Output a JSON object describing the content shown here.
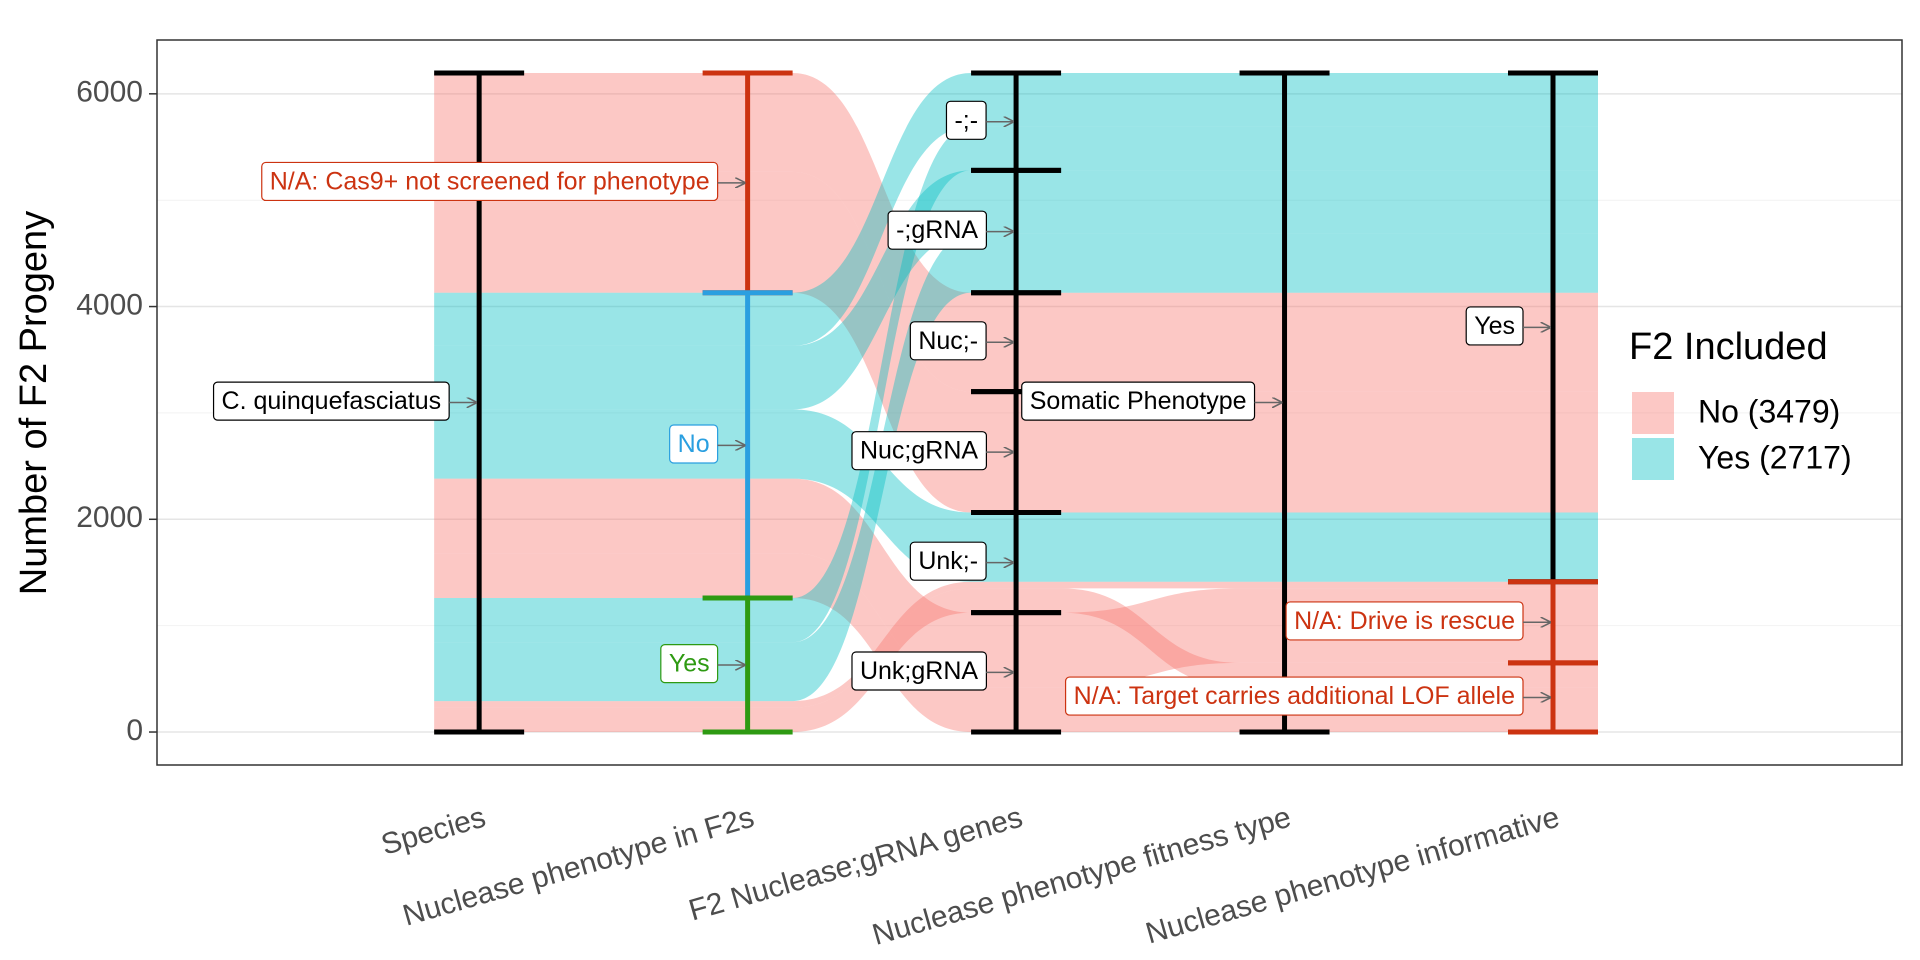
{
  "chart_data": {
    "type": "alluvial",
    "y_label": "Number of F2 Progeny",
    "ylim": [
      -310,
      6506
    ],
    "yticks": [
      0,
      2000,
      4000,
      6000
    ],
    "grid": true,
    "legend_title": "F2 Included",
    "legend_position": "right",
    "axes": [
      {
        "name": "Species",
        "strata": [
          {
            "name": "C. quinquefasciatus",
            "color": "#000000"
          }
        ]
      },
      {
        "name": "Nuclease phenotype in F2s",
        "strata": [
          {
            "name": "N/A: Cas9+ not screened for phenotype",
            "color": "#CC3311"
          },
          {
            "name": "No",
            "color": "#2A9FE0"
          },
          {
            "name": "Yes",
            "color": "#2E9A12"
          }
        ]
      },
      {
        "name": "F2 Nuclease;gRNA genes",
        "strata": [
          {
            "name": "-;-",
            "color": "#000000"
          },
          {
            "name": "-;gRNA",
            "color": "#000000"
          },
          {
            "name": "Nuc;-",
            "color": "#000000"
          },
          {
            "name": "Nuc;gRNA",
            "color": "#000000"
          },
          {
            "name": "Unk;-",
            "color": "#000000"
          },
          {
            "name": "Unk;gRNA",
            "color": "#000000"
          }
        ]
      },
      {
        "name": "Nuclease phenotype fitness type",
        "strata": [
          {
            "name": "Somatic Phenotype",
            "color": "#000000"
          }
        ]
      },
      {
        "name": "Nuclease phenotype informative",
        "strata": [
          {
            "name": "Yes",
            "color": "#000000"
          },
          {
            "name": "N/A: Drive is rescue",
            "color": "#CC3311"
          },
          {
            "name": "N/A: Target carries additional LOF allele",
            "color": "#CC3311"
          }
        ]
      }
    ],
    "series": [
      {
        "name": "No (3479)",
        "color": "#F8766D",
        "flows": [
          {
            "path": [
              0,
              0,
              2,
              0,
              0
            ],
            "value": 930
          },
          {
            "path": [
              0,
              0,
              3,
              0,
              0
            ],
            "value": 1136
          },
          {
            "path": [
              0,
              1,
              5,
              0,
              1
            ],
            "value": 700
          },
          {
            "path": [
              0,
              1,
              5,
              0,
              2
            ],
            "value": 422
          },
          {
            "path": [
              0,
              2,
              4,
              0,
              1
            ],
            "value": 63
          },
          {
            "path": [
              0,
              2,
              4,
              0,
              2
            ],
            "value": 228
          }
        ]
      },
      {
        "name": "Yes (2717)",
        "color": "#00BFC4",
        "flows": [
          {
            "path": [
              0,
              1,
              0,
              0,
              0
            ],
            "value": 500
          },
          {
            "path": [
              0,
              1,
              1,
              0,
              0
            ],
            "value": 597
          },
          {
            "path": [
              0,
              1,
              4,
              0,
              0
            ],
            "value": 651
          },
          {
            "path": [
              0,
              2,
              0,
              0,
              0
            ],
            "value": 416
          },
          {
            "path": [
              0,
              2,
              1,
              0,
              0
            ],
            "value": 553
          }
        ]
      }
    ]
  }
}
